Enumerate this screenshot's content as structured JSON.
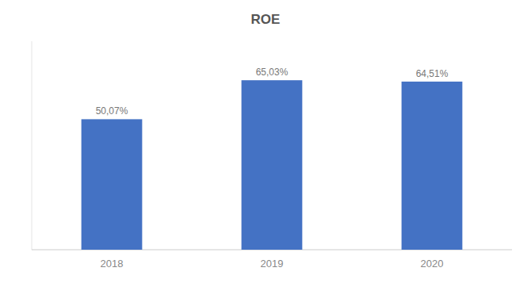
{
  "chart_data": {
    "type": "bar",
    "title": "ROE",
    "categories": [
      "2018",
      "2019",
      "2020"
    ],
    "values": [
      50.07,
      65.03,
      64.51
    ],
    "value_labels": [
      "50,07%",
      "65,03%",
      "64,51%"
    ],
    "color": "#4472C4",
    "ylim": [
      0,
      80
    ],
    "grid": false,
    "data_labels": true,
    "tick_labels": "x"
  }
}
